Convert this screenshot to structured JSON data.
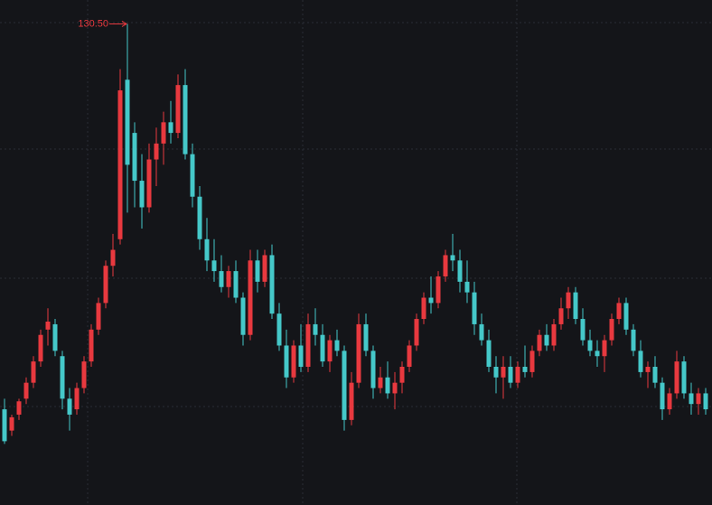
{
  "chart_data": {
    "type": "candlestick",
    "annotation": "130.50",
    "up_color": "#e8393f",
    "down_color": "#45c8c9",
    "ylim": [
      40,
      135
    ],
    "series": {
      "open": [
        58,
        54,
        57,
        60,
        63,
        67,
        73,
        74,
        68,
        60,
        58,
        62,
        67,
        73,
        78,
        85,
        90,
        120,
        110,
        101,
        96,
        105,
        108,
        112,
        110,
        119,
        106,
        98,
        90,
        86,
        84,
        81,
        84,
        79,
        72,
        86,
        82,
        87,
        76,
        70,
        64,
        70,
        66,
        74,
        72,
        67,
        71,
        69,
        56,
        63,
        74,
        69,
        62,
        64,
        61,
        63,
        66,
        70,
        75,
        79,
        78,
        83,
        87,
        86,
        82,
        80,
        74,
        71,
        66,
        64,
        66,
        63,
        66,
        65,
        69,
        72,
        70,
        74,
        77,
        80,
        75,
        71,
        69,
        68,
        71,
        75,
        78,
        73,
        69,
        65,
        66,
        63,
        58,
        61,
        67,
        61,
        59,
        61
      ],
      "high": [
        60,
        57,
        60,
        64,
        68,
        73,
        77,
        75,
        69,
        62,
        63,
        68,
        74,
        79,
        86,
        91,
        122,
        130.5,
        112,
        106,
        108,
        111,
        114,
        116,
        121,
        122,
        108,
        100,
        94,
        90,
        87,
        85,
        86,
        80,
        88,
        88,
        88,
        89,
        78,
        73,
        71,
        74,
        76,
        77,
        74,
        72,
        73,
        70,
        65,
        76,
        76,
        70,
        66,
        67,
        65,
        67,
        71,
        76,
        80,
        83,
        84,
        88,
        91,
        88,
        86,
        82,
        76,
        73,
        68,
        68,
        68,
        67,
        70,
        70,
        73,
        74,
        75,
        79,
        81,
        81,
        77,
        73,
        71,
        72,
        76,
        79,
        79,
        74,
        71,
        67,
        68,
        64,
        62,
        69,
        68,
        63,
        62,
        62
      ],
      "low": [
        51.5,
        53,
        56,
        59,
        62,
        66,
        70,
        68,
        58,
        54,
        57,
        61,
        66,
        72,
        77,
        83,
        89,
        95,
        96,
        92,
        95,
        100,
        104,
        108,
        109,
        105,
        96,
        88,
        84,
        82,
        80,
        79,
        78,
        70,
        71,
        80,
        81,
        75,
        69,
        62,
        63,
        65,
        65,
        70,
        66,
        65,
        68,
        54,
        55,
        62,
        68,
        60,
        61,
        60,
        58,
        61,
        65,
        69,
        74,
        76,
        77,
        82,
        84,
        80,
        78,
        72,
        70,
        65,
        61,
        60,
        62,
        62,
        64,
        64,
        68,
        69,
        69,
        73,
        75,
        74,
        70,
        68,
        66,
        65,
        70,
        74,
        72,
        68,
        64,
        62,
        62,
        56,
        57,
        60,
        60,
        57,
        57,
        57
      ],
      "close": [
        52,
        56.5,
        59.5,
        63,
        67,
        72,
        74.5,
        69,
        60,
        57,
        62,
        67,
        73,
        78,
        85,
        88,
        118,
        104,
        101,
        96,
        105,
        108,
        112,
        110,
        119,
        106,
        98,
        90,
        86,
        84,
        81,
        84,
        79,
        72,
        86,
        82,
        87,
        76,
        70,
        64,
        70,
        66,
        74,
        72,
        67,
        71,
        69,
        56,
        63,
        74,
        69,
        62,
        64,
        61,
        63,
        66,
        70,
        75,
        79,
        78,
        83,
        87,
        86,
        82,
        80,
        74,
        71,
        66,
        64,
        66,
        63,
        66,
        65,
        69,
        72,
        70,
        74,
        77,
        80,
        75,
        71,
        69,
        68,
        71,
        75,
        78,
        73,
        69,
        65,
        66,
        63,
        58,
        61,
        67,
        61,
        59,
        61,
        58
      ]
    }
  }
}
